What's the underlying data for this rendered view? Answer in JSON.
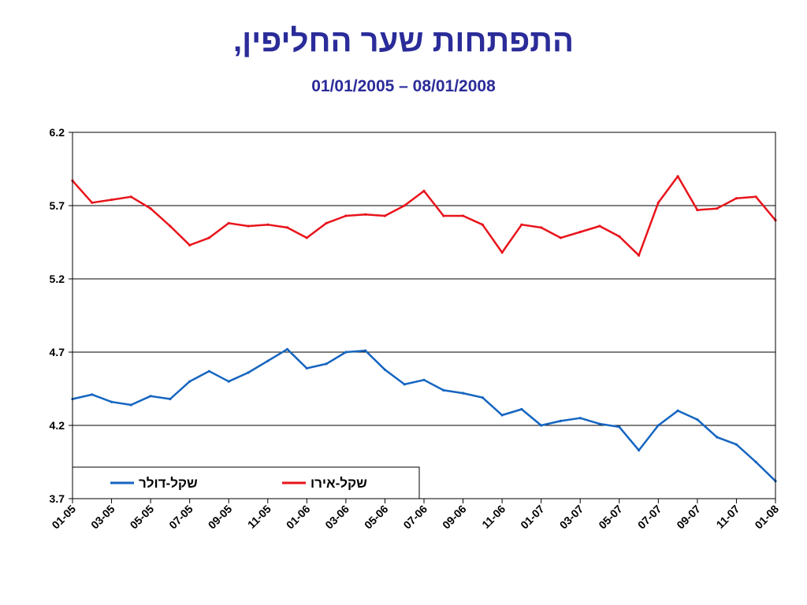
{
  "title": "התפתחות שער החליפין,",
  "subtitle": "01/01/2005 – 08/01/2008",
  "chart_data": {
    "type": "line",
    "title": "התפתחות שער החליפין,",
    "subtitle": "01/01/2005 – 08/01/2008",
    "ylim": [
      3.7,
      6.2
    ],
    "yticks": [
      "6.2",
      "5.7",
      "5.2",
      "4.7",
      "4.2",
      "3.7"
    ],
    "grid": true,
    "legend_position": "bottom-left",
    "x_tick_labels": [
      "01-05",
      "03-05",
      "05-05",
      "07-05",
      "09-05",
      "11-05",
      "01-06",
      "03-06",
      "05-06",
      "07-06",
      "09-06",
      "11-06",
      "01-07",
      "03-07",
      "05-07",
      "07-07",
      "09-07",
      "11-07",
      "01-08"
    ],
    "x": [
      "01-05",
      "02-05",
      "03-05",
      "04-05",
      "05-05",
      "06-05",
      "07-05",
      "08-05",
      "09-05",
      "10-05",
      "11-05",
      "12-05",
      "01-06",
      "02-06",
      "03-06",
      "04-06",
      "05-06",
      "06-06",
      "07-06",
      "08-06",
      "09-06",
      "10-06",
      "11-06",
      "12-06",
      "01-07",
      "02-07",
      "03-07",
      "04-07",
      "05-07",
      "06-07",
      "07-07",
      "08-07",
      "09-07",
      "10-07",
      "11-07",
      "12-07",
      "01-08"
    ],
    "series": [
      {
        "name": "שקל-אירו",
        "color": "#e8141b",
        "values": [
          5.87,
          5.72,
          5.74,
          5.76,
          5.68,
          5.56,
          5.43,
          5.48,
          5.58,
          5.56,
          5.57,
          5.55,
          5.48,
          5.58,
          5.63,
          5.64,
          5.63,
          5.7,
          5.8,
          5.63,
          5.63,
          5.57,
          5.38,
          5.57,
          5.55,
          5.48,
          5.52,
          5.56,
          5.49,
          5.36,
          5.72,
          5.9,
          5.67,
          5.68,
          5.75,
          5.76,
          5.6
        ]
      },
      {
        "name": "שקל-דולר",
        "color": "#1565c0",
        "values": [
          4.38,
          4.41,
          4.36,
          4.34,
          4.4,
          4.38,
          4.5,
          4.57,
          4.5,
          4.56,
          4.64,
          4.72,
          4.59,
          4.62,
          4.7,
          4.71,
          4.58,
          4.48,
          4.51,
          4.44,
          4.42,
          4.39,
          4.27,
          4.31,
          4.2,
          4.23,
          4.25,
          4.21,
          4.19,
          4.03,
          4.2,
          4.3,
          4.24,
          4.12,
          4.07,
          3.95,
          3.82
        ]
      }
    ]
  }
}
